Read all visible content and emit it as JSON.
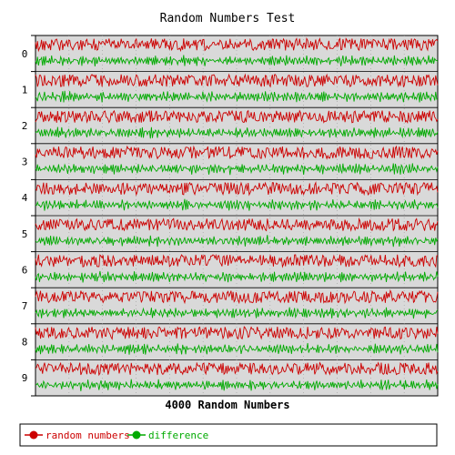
{
  "chart_data": {
    "type": "line",
    "title": "Random Numbers Test",
    "xlabel": "4000 Random Numbers",
    "ylabel": "",
    "rows": [
      "0",
      "1",
      "2",
      "3",
      "4",
      "5",
      "6",
      "7",
      "8",
      "9"
    ],
    "samples_per_row": 400,
    "series": [
      {
        "name": "random numbers",
        "color": "#cc0000"
      },
      {
        "name": "difference",
        "color": "#00aa00"
      }
    ],
    "grid": true,
    "legend_position": "bottom",
    "plot_background": "#d9d9d9"
  }
}
